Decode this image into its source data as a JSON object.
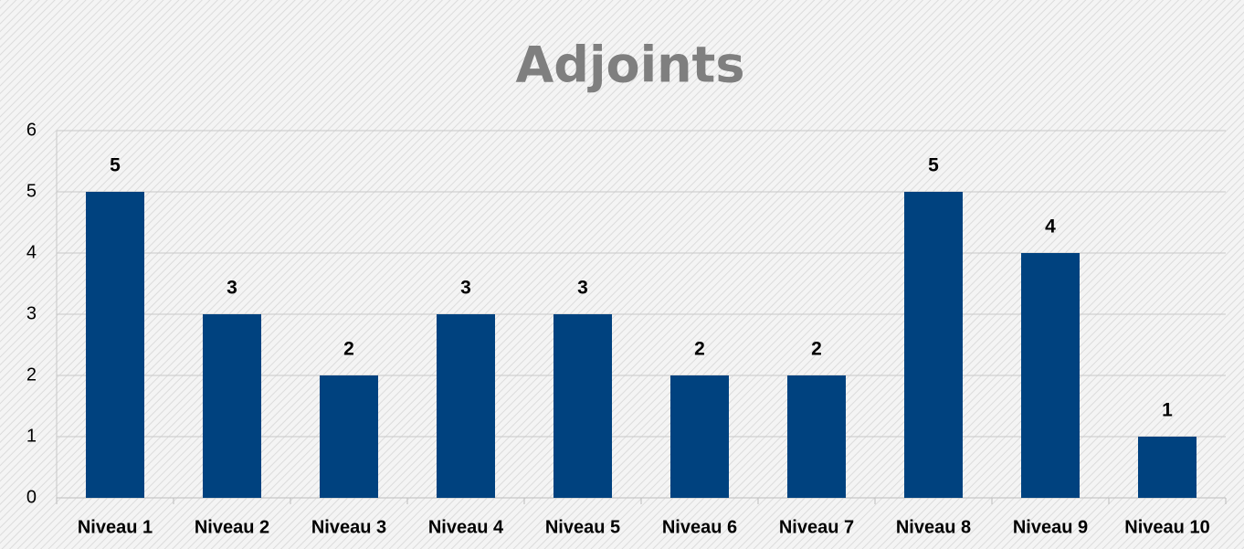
{
  "chart_data": {
    "type": "bar",
    "title": "Adjoints",
    "categories": [
      "Niveau 1",
      "Niveau 2",
      "Niveau 3",
      "Niveau 4",
      "Niveau 5",
      "Niveau 6",
      "Niveau 7",
      "Niveau 8",
      "Niveau 9",
      "Niveau 10"
    ],
    "values": [
      5,
      3,
      2,
      3,
      3,
      2,
      2,
      5,
      4,
      1
    ],
    "color": "#00427f",
    "ylim": [
      0,
      6
    ],
    "yticks": [
      0,
      1,
      2,
      3,
      4,
      5,
      6
    ],
    "grid": true
  }
}
